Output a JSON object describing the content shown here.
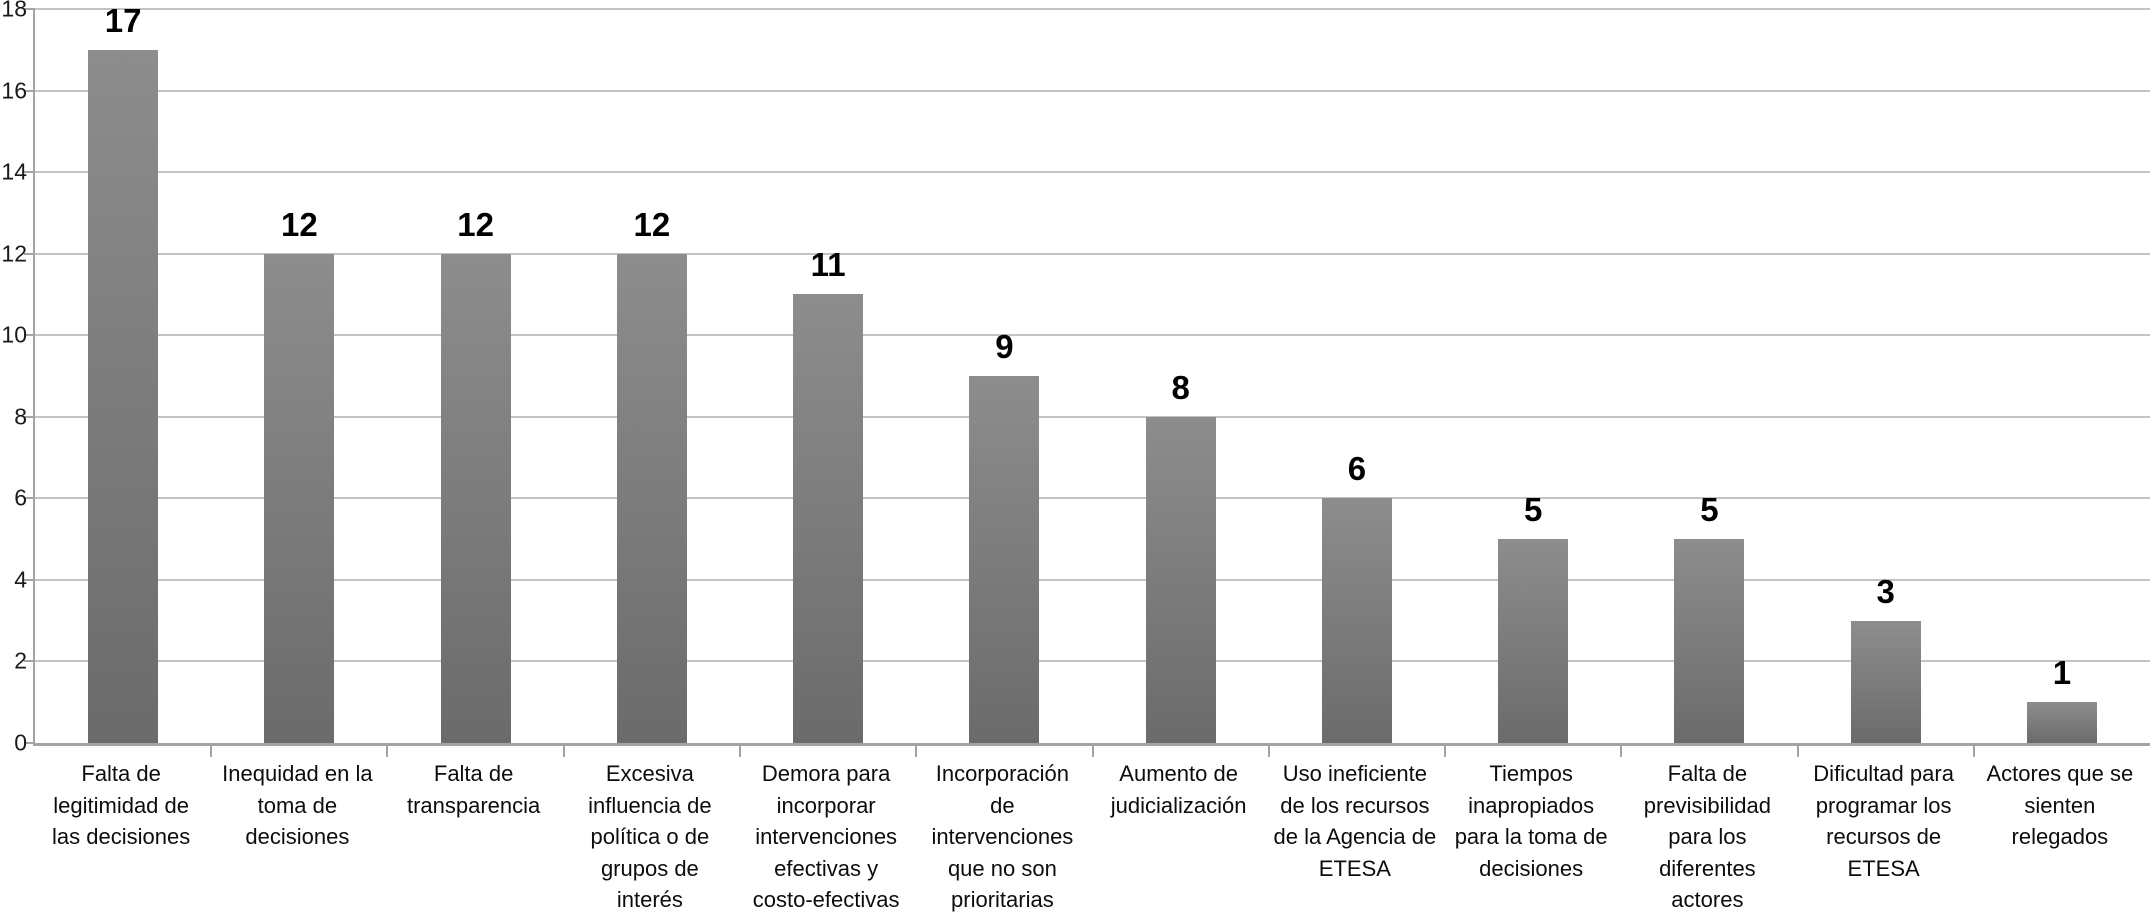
{
  "chart_data": {
    "type": "bar",
    "title": "",
    "xlabel": "",
    "ylabel": "",
    "ylim": [
      0,
      18
    ],
    "ytick_step": 2,
    "grid": true,
    "legend": false,
    "categories": [
      "Falta de legitimidad de las decisiones",
      "Inequidad en la toma de decisiones",
      "Falta de transparencia",
      "Excesiva influencia de política o de grupos de interés",
      "Demora para incorporar intervenciones efectivas y costo-efectivas",
      "Incorporación de intervenciones que no son prioritarias",
      "Aumento de judicialización",
      "Uso ineficiente de los recursos de la Agencia de ETESA",
      "Tiempos inapropiados para la toma de decisiones",
      "Falta de previsibilidad para los diferentes actores",
      "Dificultad para programar los recursos de ETESA",
      "Actores que se sienten relegados"
    ],
    "category_label_lines": [
      [
        "Falta de",
        "legitimidad de",
        "las decisiones"
      ],
      [
        "Inequidad en la",
        "toma de",
        "decisiones"
      ],
      [
        "Falta de",
        "transparencia"
      ],
      [
        "Excesiva",
        "influencia de",
        "política o de",
        "grupos de",
        "interés"
      ],
      [
        "Demora para",
        "incorporar",
        "intervenciones",
        "efectivas y",
        "costo-efectivas"
      ],
      [
        "Incorporación",
        "de",
        "intervenciones",
        "que no son",
        "prioritarias"
      ],
      [
        "Aumento de",
        "judicialización"
      ],
      [
        "Uso ineficiente",
        "de los recursos",
        "de la Agencia de",
        "ETESA"
      ],
      [
        "Tiempos",
        "inapropiados",
        "para la toma de",
        "decisiones"
      ],
      [
        "Falta de",
        "previsibilidad",
        "para los",
        "diferentes",
        "actores"
      ],
      [
        "Dificultad para",
        "programar los",
        "recursos de",
        "ETESA"
      ],
      [
        "Actores que se",
        "sienten",
        "relegados"
      ]
    ],
    "values": [
      17,
      12,
      12,
      12,
      11,
      9,
      8,
      6,
      5,
      5,
      3,
      1
    ],
    "colors": {
      "bar_top": "#8d8d8d",
      "bar_bottom": "#6b6b6b",
      "gridline": "#c3c3c3",
      "axis": "#a3a3a3",
      "text": "#000000"
    }
  }
}
